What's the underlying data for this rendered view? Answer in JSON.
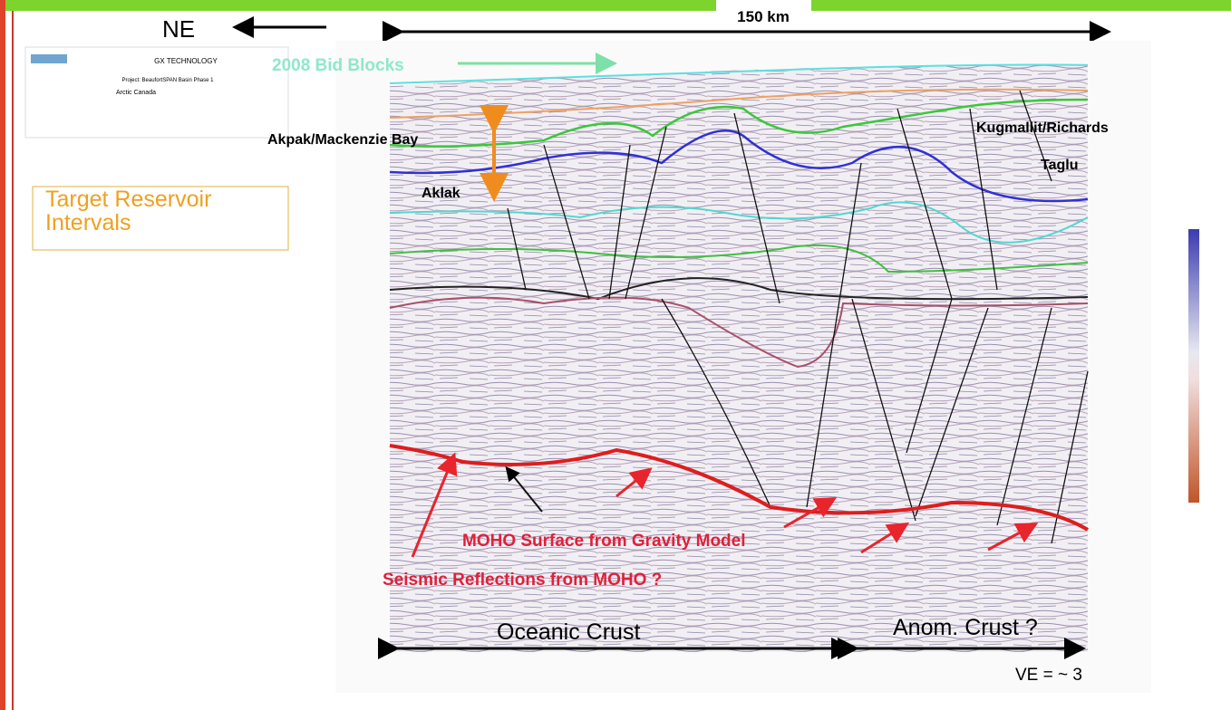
{
  "header": {
    "direction": "NE",
    "scale_bar": "150 km"
  },
  "info_box": {
    "company": "GX TECHNOLOGY",
    "project": "Project: BeaufortSPAN Basin Phase 1",
    "region": "Arctic Canada"
  },
  "labels": {
    "bid_blocks": "2008 Bid Blocks",
    "akpak": "Akpak/Mackenzie Bay",
    "aklak": "Aklak",
    "kugmallit": "Kugmallit/Richards",
    "taglu": "Taglu",
    "target": "Target Reservoir Intervals",
    "moho_surface": "MOHO Surface from Gravity Model",
    "moho_reflections": "Seismic Reflections from MOHO ?",
    "oceanic": "Oceanic Crust",
    "anomalous": "Anom. Crust ?",
    "ve": "VE = ~ 3"
  }
}
